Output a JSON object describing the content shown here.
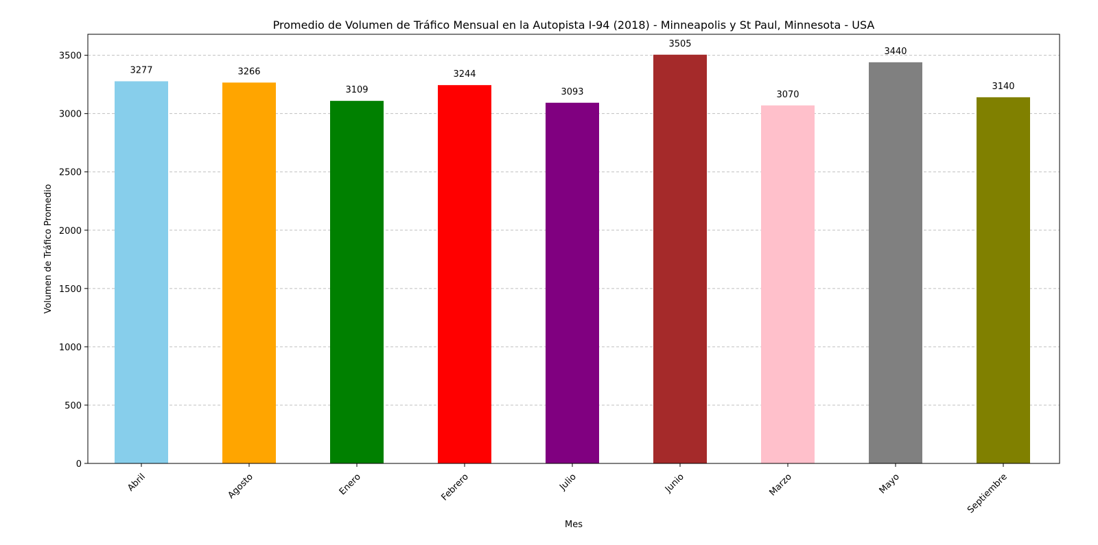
{
  "chart_data": {
    "type": "bar",
    "title": "Promedio de Volumen de Tráfico Mensual en la Autopista I-94 (2018) - Minneapolis y St Paul, Minnesota - USA",
    "xlabel": "Mes",
    "ylabel": "Volumen de Tráfico Promedio",
    "categories": [
      "Abril",
      "Agosto",
      "Enero",
      "Febrero",
      "Julio",
      "Junio",
      "Marzo",
      "Mayo",
      "Septiembre"
    ],
    "values": [
      3277,
      3266,
      3109,
      3244,
      3093,
      3505,
      3070,
      3440,
      3140
    ],
    "value_labels": [
      "3277",
      "3266",
      "3109",
      "3244",
      "3093",
      "3505",
      "3070",
      "3440",
      "3140"
    ],
    "colors": [
      "#87CEEB",
      "#FFA500",
      "#008000",
      "#FF0000",
      "#800080",
      "#A52A2A",
      "#FFC0CB",
      "#808080",
      "#808000"
    ],
    "ylim": [
      0,
      3680
    ],
    "yticks": [
      0,
      500,
      1000,
      1500,
      2000,
      2500,
      3000,
      3500
    ],
    "ytick_labels": [
      "0",
      "500",
      "1000",
      "1500",
      "2000",
      "2500",
      "3000",
      "3500"
    ],
    "grid": "horizontal-dashed",
    "legend": "none"
  }
}
